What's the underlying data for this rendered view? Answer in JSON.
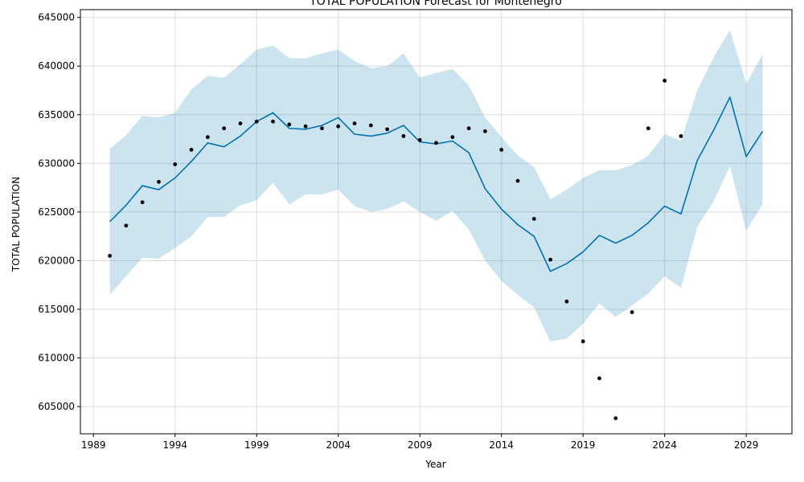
{
  "chart_data": {
    "type": "line",
    "title": "TOTAL POPULATION Forecast for Montenegro",
    "xlabel": "Year",
    "ylabel": "TOTAL POPULATION",
    "xlim": [
      1988.2,
      2031.8
    ],
    "ylim": [
      602200,
      645800
    ],
    "x_ticks": [
      1989,
      1994,
      1999,
      2004,
      2009,
      2014,
      2019,
      2024,
      2029
    ],
    "y_ticks": [
      605000,
      610000,
      615000,
      620000,
      625000,
      630000,
      635000,
      640000,
      645000
    ],
    "grid": true,
    "colors": {
      "forecast_line": "#0072B2",
      "interval_fill": "#0072B2",
      "observed_points": "#000000",
      "grid": "#dddddd"
    },
    "observed": {
      "x": [
        1990,
        1991,
        1992,
        1993,
        1994,
        1995,
        1996,
        1997,
        1998,
        1999,
        2000,
        2001,
        2002,
        2003,
        2004,
        2005,
        2006,
        2007,
        2008,
        2009,
        2010,
        2011,
        2012,
        2013,
        2014,
        2015,
        2016,
        2017,
        2018,
        2019,
        2020,
        2021,
        2022,
        2023,
        2024,
        2025
      ],
      "y": [
        620500,
        623600,
        626000,
        628100,
        629900,
        631400,
        632700,
        633600,
        634100,
        634300,
        634300,
        634000,
        633800,
        633600,
        633800,
        634100,
        633900,
        633500,
        632800,
        632400,
        632100,
        632700,
        633600,
        633300,
        631400,
        628200,
        624300,
        620100,
        615800,
        611700,
        607900,
        603800,
        614700,
        633600,
        638500,
        632800
      ]
    },
    "forecast": {
      "x": [
        1990,
        1991,
        1992,
        1993,
        1994,
        1995,
        1996,
        1997,
        1998,
        1999,
        2000,
        2001,
        2002,
        2003,
        2004,
        2005,
        2006,
        2007,
        2008,
        2009,
        2010,
        2011,
        2012,
        2013,
        2014,
        2015,
        2016,
        2017,
        2018,
        2019,
        2020,
        2021,
        2022,
        2023,
        2024,
        2025,
        2026,
        2027,
        2028,
        2029,
        2030
      ],
      "yhat": [
        624000,
        625700,
        627700,
        627300,
        628500,
        630200,
        632100,
        631700,
        632800,
        634300,
        635200,
        633600,
        633500,
        633900,
        634700,
        633000,
        632800,
        633100,
        633900,
        632200,
        632000,
        632300,
        631100,
        627400,
        625300,
        623700,
        622500,
        618900,
        619700,
        620900,
        622600,
        621800,
        622600,
        623900,
        625600,
        624800,
        630300,
        633400,
        636800,
        630700,
        633300
      ],
      "lower": [
        616500,
        618400,
        620300,
        620200,
        621300,
        622500,
        624500,
        624500,
        625700,
        626200,
        628000,
        625800,
        626800,
        626800,
        627300,
        625600,
        625000,
        625300,
        626100,
        625000,
        624100,
        625100,
        623200,
        620000,
        617900,
        616500,
        615200,
        611700,
        612000,
        613500,
        615600,
        614200,
        615400,
        616600,
        618400,
        617200,
        623500,
        626100,
        629700,
        623100,
        625800
      ],
      "upper": [
        631500,
        632900,
        634900,
        634700,
        635200,
        637600,
        639000,
        638800,
        640200,
        641700,
        642100,
        640800,
        640800,
        641300,
        641700,
        640500,
        639800,
        640000,
        641300,
        638800,
        639300,
        639700,
        638000,
        634700,
        632700,
        630800,
        629600,
        626300,
        627300,
        628500,
        629300,
        629300,
        629800,
        630800,
        633000,
        632300,
        637500,
        640900,
        643700,
        638200,
        641200
      ]
    }
  }
}
